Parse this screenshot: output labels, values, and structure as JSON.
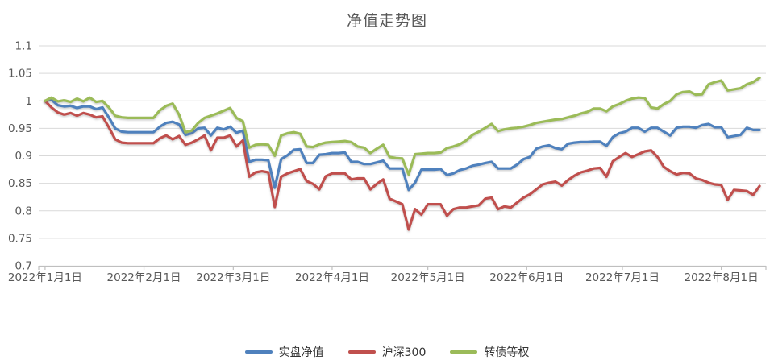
{
  "title": "净值走势图",
  "chart_data": {
    "type": "line",
    "title": "净值走势图",
    "xlabel": "",
    "ylabel": "",
    "ylim": [
      0.7,
      1.1
    ],
    "grid": true,
    "legend_position": "bottom",
    "y_tick_labels": [
      "1.1",
      "1.05",
      "1",
      "0.95",
      "0.9",
      "0.85",
      "0.8",
      "0.75",
      "0.7"
    ],
    "y_tick_values": [
      1.1,
      1.05,
      1.0,
      0.95,
      0.9,
      0.85,
      0.8,
      0.75,
      0.7
    ],
    "x_tick_labels": [
      "2022年1月1日",
      "2022年2月1日",
      "2022年3月1日",
      "2022年4月1日",
      "2022年5月1日",
      "2022年6月1日",
      "2022年7月1日",
      "2022年8月1日"
    ],
    "x_tick_day_offsets": [
      0,
      31,
      59,
      90,
      120,
      151,
      181,
      212
    ],
    "x_start_day": 0,
    "x_step_days": 2,
    "axis_color": "#BFBFBF",
    "grid_color": "#D9D9D9",
    "label_color": "#595959",
    "series": [
      {
        "name": "实盘净值",
        "color": "#4F81BD",
        "values": [
          1.0,
          1.002,
          0.992,
          0.99,
          0.991,
          0.987,
          0.99,
          0.99,
          0.985,
          0.988,
          0.97,
          0.95,
          0.944,
          0.943,
          0.943,
          0.943,
          0.943,
          0.943,
          0.953,
          0.96,
          0.962,
          0.957,
          0.938,
          0.941,
          0.95,
          0.951,
          0.937,
          0.951,
          0.948,
          0.953,
          0.942,
          0.946,
          0.889,
          0.893,
          0.893,
          0.892,
          0.842,
          0.894,
          0.901,
          0.911,
          0.912,
          0.887,
          0.887,
          0.902,
          0.903,
          0.905,
          0.905,
          0.906,
          0.889,
          0.889,
          0.885,
          0.885,
          0.888,
          0.891,
          0.877,
          0.877,
          0.877,
          0.838,
          0.851,
          0.875,
          0.875,
          0.875,
          0.876,
          0.865,
          0.868,
          0.874,
          0.877,
          0.882,
          0.884,
          0.887,
          0.889,
          0.877,
          0.877,
          0.877,
          0.884,
          0.894,
          0.898,
          0.913,
          0.917,
          0.919,
          0.914,
          0.912,
          0.922,
          0.924,
          0.925,
          0.925,
          0.926,
          0.926,
          0.918,
          0.934,
          0.941,
          0.944,
          0.951,
          0.951,
          0.944,
          0.951,
          0.951,
          0.944,
          0.937,
          0.951,
          0.953,
          0.953,
          0.951,
          0.956,
          0.958,
          0.952,
          0.952,
          0.934,
          0.936,
          0.938,
          0.951,
          0.947,
          0.947
        ]
      },
      {
        "name": "沪深300",
        "color": "#C0504D",
        "values": [
          1.0,
          0.988,
          0.979,
          0.975,
          0.978,
          0.973,
          0.978,
          0.975,
          0.97,
          0.972,
          0.952,
          0.93,
          0.924,
          0.923,
          0.923,
          0.923,
          0.923,
          0.923,
          0.932,
          0.937,
          0.93,
          0.936,
          0.92,
          0.924,
          0.93,
          0.937,
          0.91,
          0.933,
          0.933,
          0.937,
          0.917,
          0.928,
          0.862,
          0.87,
          0.872,
          0.87,
          0.807,
          0.862,
          0.868,
          0.872,
          0.876,
          0.854,
          0.849,
          0.839,
          0.863,
          0.868,
          0.868,
          0.868,
          0.857,
          0.859,
          0.859,
          0.839,
          0.849,
          0.857,
          0.822,
          0.817,
          0.812,
          0.766,
          0.803,
          0.793,
          0.812,
          0.812,
          0.812,
          0.791,
          0.803,
          0.806,
          0.806,
          0.808,
          0.81,
          0.822,
          0.824,
          0.803,
          0.808,
          0.806,
          0.815,
          0.824,
          0.83,
          0.839,
          0.848,
          0.851,
          0.853,
          0.846,
          0.856,
          0.864,
          0.87,
          0.873,
          0.877,
          0.878,
          0.862,
          0.89,
          0.898,
          0.905,
          0.898,
          0.903,
          0.908,
          0.91,
          0.898,
          0.88,
          0.872,
          0.866,
          0.869,
          0.868,
          0.859,
          0.856,
          0.851,
          0.848,
          0.847,
          0.82,
          0.838,
          0.837,
          0.836,
          0.829,
          0.845
        ]
      },
      {
        "name": "转债等权",
        "color": "#9BBB59",
        "values": [
          1.0,
          1.006,
          0.999,
          1.001,
          0.998,
          1.004,
          0.999,
          1.006,
          0.998,
          1.0,
          0.988,
          0.973,
          0.97,
          0.969,
          0.969,
          0.969,
          0.969,
          0.969,
          0.983,
          0.991,
          0.995,
          0.975,
          0.943,
          0.946,
          0.96,
          0.969,
          0.973,
          0.977,
          0.982,
          0.987,
          0.969,
          0.963,
          0.915,
          0.92,
          0.921,
          0.92,
          0.9,
          0.937,
          0.941,
          0.943,
          0.94,
          0.917,
          0.916,
          0.921,
          0.924,
          0.925,
          0.926,
          0.927,
          0.925,
          0.917,
          0.915,
          0.905,
          0.913,
          0.92,
          0.898,
          0.896,
          0.895,
          0.866,
          0.903,
          0.904,
          0.905,
          0.905,
          0.906,
          0.914,
          0.917,
          0.921,
          0.928,
          0.938,
          0.944,
          0.951,
          0.958,
          0.945,
          0.948,
          0.95,
          0.951,
          0.953,
          0.956,
          0.96,
          0.962,
          0.964,
          0.966,
          0.967,
          0.97,
          0.973,
          0.977,
          0.98,
          0.986,
          0.986,
          0.981,
          0.99,
          0.994,
          1.0,
          1.004,
          1.006,
          1.005,
          0.988,
          0.986,
          0.994,
          1.0,
          1.012,
          1.016,
          1.017,
          1.011,
          1.012,
          1.03,
          1.034,
          1.037,
          1.019,
          1.021,
          1.023,
          1.03,
          1.034,
          1.042
        ]
      }
    ]
  }
}
